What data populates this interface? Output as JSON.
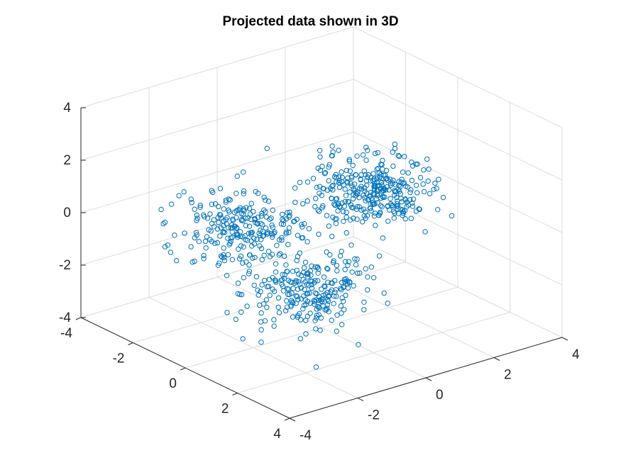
{
  "chart_data": {
    "type": "scatter",
    "title": "Projected data shown in 3D",
    "xlabel": "",
    "ylabel": "",
    "zlabel": "",
    "xlim": [
      -4,
      4
    ],
    "ylim": [
      -4,
      4
    ],
    "zlim": [
      -4,
      4
    ],
    "x_ticks": [
      "-4",
      "-2",
      "0",
      "2",
      "4"
    ],
    "y_ticks": [
      "-4",
      "-2",
      "0",
      "2",
      "4"
    ],
    "z_ticks": [
      "-4",
      "-2",
      "0",
      "2",
      "4"
    ],
    "grid": true,
    "view": "3d-default",
    "marker": "open-circle",
    "series_color": "#0072BD",
    "clusters": [
      {
        "center": [
          0.3,
          1.2,
          0.9
        ],
        "spread": [
          0.75,
          0.7,
          0.55
        ],
        "count": 330
      },
      {
        "center": [
          -1.3,
          -1.4,
          -0.3
        ],
        "spread": [
          0.75,
          0.75,
          0.55
        ],
        "count": 230
      },
      {
        "center": [
          1.4,
          -1.5,
          -1.3
        ],
        "spread": [
          0.7,
          0.8,
          0.6
        ],
        "count": 260
      }
    ]
  }
}
